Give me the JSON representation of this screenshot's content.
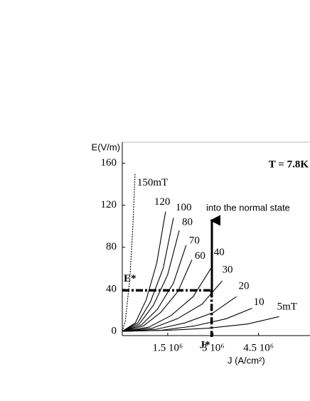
{
  "chart_data": {
    "type": "line",
    "title": "T = 7.8K",
    "x_label": "J (A/cm²)",
    "y_label": "E(V/m)",
    "annotation": "into the normal state",
    "xlim": [
      0,
      6200000
    ],
    "ylim": [
      0,
      180
    ],
    "xticks": [
      {
        "value": 1500000,
        "label": "1.5 10⁶"
      },
      {
        "value": 3000000,
        "label": "3 10⁶"
      },
      {
        "value": 4500000,
        "label": "4.5 10⁶"
      }
    ],
    "yticks": [
      0,
      40,
      80,
      120,
      160
    ],
    "marker": {
      "x": 2950000,
      "y": 39,
      "x_label": "J*",
      "y_label": "E*"
    },
    "series": [
      {
        "name": "150mT",
        "color": "#000000",
        "style": "dotted",
        "x": [
          0,
          100000,
          250000,
          350000,
          420000
        ],
        "values": [
          0,
          10,
          50,
          100,
          150
        ]
      },
      {
        "name": "120",
        "color": "#000000",
        "style": "solid",
        "x": [
          0,
          430000,
          790000,
          1140000,
          1430000
        ],
        "values": [
          0,
          8,
          30,
          65,
          114
        ]
      },
      {
        "name": "100",
        "color": "#000000",
        "style": "solid",
        "x": [
          0,
          510000,
          930000,
          1350000,
          1690000
        ],
        "values": [
          0,
          8,
          28,
          60,
          108
        ]
      },
      {
        "name": "80",
        "color": "#000000",
        "style": "solid",
        "x": [
          0,
          560000,
          1030000,
          1500000,
          1880000
        ],
        "values": [
          0,
          7,
          25,
          54,
          96
        ]
      },
      {
        "name": "70",
        "color": "#000000",
        "style": "solid",
        "x": [
          0,
          630000,
          1160000,
          1690000,
          2110000
        ],
        "values": [
          0,
          6,
          21,
          46,
          82
        ]
      },
      {
        "name": "60",
        "color": "#000000",
        "style": "solid",
        "x": [
          0,
          690000,
          1270000,
          1840000,
          2300000
        ],
        "values": [
          0,
          5,
          18,
          38,
          68
        ]
      },
      {
        "name": "40",
        "color": "#000000",
        "style": "solid",
        "x": [
          0,
          880000,
          1610000,
          2340000,
          2930000
        ],
        "values": [
          0,
          4,
          15,
          33,
          60
        ]
      },
      {
        "name": "30",
        "color": "#000000",
        "style": "solid",
        "x": [
          0,
          990000,
          1820000,
          2640000,
          3300000
        ],
        "values": [
          0,
          3,
          12,
          26,
          48
        ]
      },
      {
        "name": "20",
        "color": "#000000",
        "style": "solid",
        "x": [
          0,
          1130000,
          2070000,
          3020000,
          3770000
        ],
        "values": [
          0,
          2,
          8,
          18,
          33
        ]
      },
      {
        "name": "10",
        "color": "#000000",
        "style": "solid",
        "x": [
          0,
          1290000,
          2360000,
          3430000,
          4290000
        ],
        "values": [
          0,
          1,
          5,
          12,
          22
        ]
      },
      {
        "name": "5mT",
        "color": "#000000",
        "style": "solid",
        "x": [
          0,
          1550000,
          2850000,
          4140000,
          5180000
        ],
        "values": [
          0,
          1,
          3,
          7,
          14
        ]
      }
    ]
  }
}
